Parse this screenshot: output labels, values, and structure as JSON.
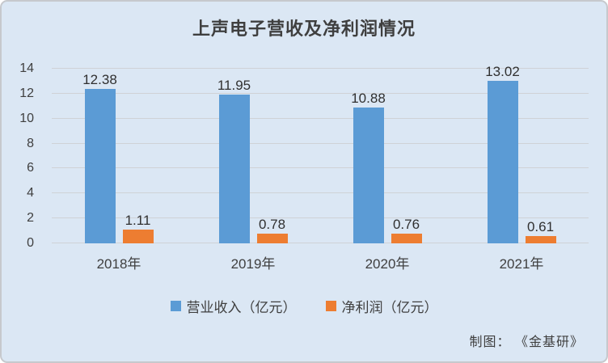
{
  "chart_data": {
    "type": "bar",
    "title": "上声电子营收及净利润情况",
    "categories": [
      "2018年",
      "2019年",
      "2020年",
      "2021年"
    ],
    "series": [
      {
        "name": "营业收入（亿元）",
        "color": "#5b9bd5",
        "values": [
          12.38,
          11.95,
          10.88,
          13.02
        ]
      },
      {
        "name": "净利润（亿元）",
        "color": "#ed7d31",
        "values": [
          1.11,
          0.78,
          0.76,
          0.61
        ]
      }
    ],
    "ylim": [
      0,
      14
    ],
    "yticks": [
      0,
      2,
      4,
      6,
      8,
      10,
      12,
      14
    ],
    "grid": true,
    "legend_position": "bottom",
    "value_labels": true
  },
  "credit": "制图：  《金基研》",
  "colors": {
    "background": "#dbe7f4",
    "border": "#c6c9cd",
    "gridline": "#cfd2d6",
    "title_text": "#3f3f3f",
    "value_text": "#303030",
    "revenue_bar": "#5b9bd5",
    "profit_bar": "#ed7d31"
  }
}
